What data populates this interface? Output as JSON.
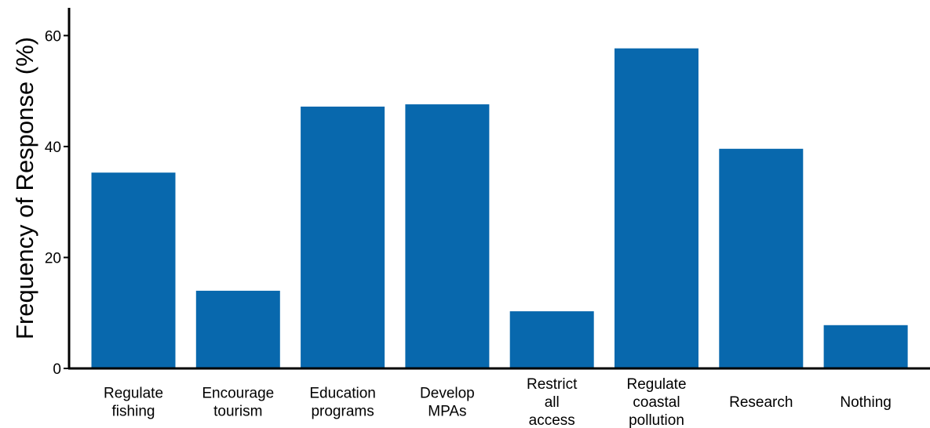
{
  "chart_data": {
    "type": "bar",
    "categories": [
      [
        "Regulate",
        "fishing"
      ],
      [
        "Encourage",
        "tourism"
      ],
      [
        "Education",
        "programs"
      ],
      [
        "Develop",
        "MPAs"
      ],
      [
        "Restrict",
        "all",
        "access"
      ],
      [
        "Regulate",
        "coastal",
        "pollution"
      ],
      [
        "Research"
      ],
      [
        "Nothing"
      ]
    ],
    "values": [
      35.3,
      14.0,
      47.2,
      47.6,
      10.3,
      57.7,
      39.6,
      7.8
    ],
    "ylabel": "Frequency of Response (%)",
    "ylim": [
      0,
      65
    ],
    "yticks": [
      0,
      20,
      40,
      60
    ],
    "grid": false,
    "colors": {
      "bar": "#0868ad",
      "axis": "#000000"
    }
  }
}
